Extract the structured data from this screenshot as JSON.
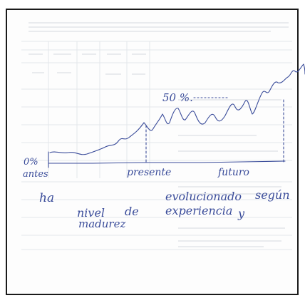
{
  "annotations": {
    "percent_50": "50 %.",
    "percent_0": "0%",
    "label_antes": "antes",
    "label_presente": "presente",
    "label_futuro": "futuro",
    "note_word_1": "ha",
    "note_word_2": "evolucionado",
    "note_word_3": "según",
    "note_word_4": "nivel",
    "note_word_5": "de",
    "note_word_6": "madurez",
    "note_word_7": "experiencia",
    "note_word_8": "y"
  },
  "colors": {
    "ink": "#3a4c9a",
    "frame": "#1a1a1a",
    "faint_print": "#e4e6ea"
  }
}
